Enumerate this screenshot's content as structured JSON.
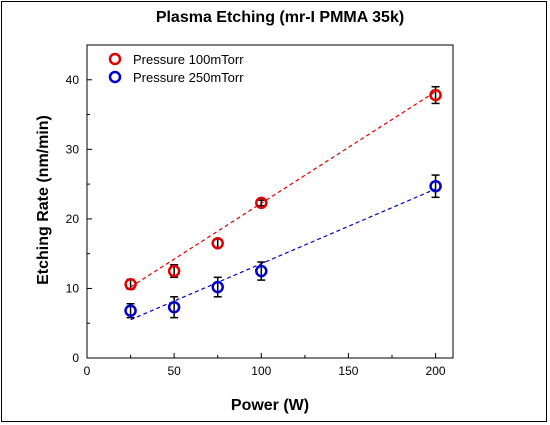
{
  "chart_data": {
    "type": "scatter",
    "title": "Plasma Etching (mr-I  PMMA 35k)",
    "xlabel": "Power (W)",
    "ylabel": "Etching Rate (nm/min)",
    "xlim": [
      0,
      210
    ],
    "ylim": [
      0,
      45
    ],
    "xticks": [
      0,
      50,
      100,
      150,
      200
    ],
    "yticks": [
      0,
      10,
      20,
      30,
      40
    ],
    "grid": false,
    "legend_position": "top-left",
    "series": [
      {
        "name": "Pressure 100mTorr",
        "color": "#e00000",
        "x": [
          25,
          50,
          75,
          100,
          200
        ],
        "y": [
          10.6,
          12.5,
          16.5,
          22.3,
          37.8
        ],
        "err": [
          0.7,
          0.9,
          0.6,
          0.4,
          1.2
        ],
        "fit": {
          "x": [
            25,
            200
          ],
          "y": [
            10.2,
            38.3
          ]
        }
      },
      {
        "name": "Pressure 250mTorr",
        "color": "#0000cc",
        "x": [
          25,
          50,
          75,
          100,
          200
        ],
        "y": [
          6.8,
          7.3,
          10.2,
          12.5,
          24.7
        ],
        "err": [
          1.0,
          1.5,
          1.4,
          1.3,
          1.6
        ],
        "fit": {
          "x": [
            25,
            200
          ],
          "y": [
            5.5,
            24.3
          ]
        }
      }
    ]
  }
}
